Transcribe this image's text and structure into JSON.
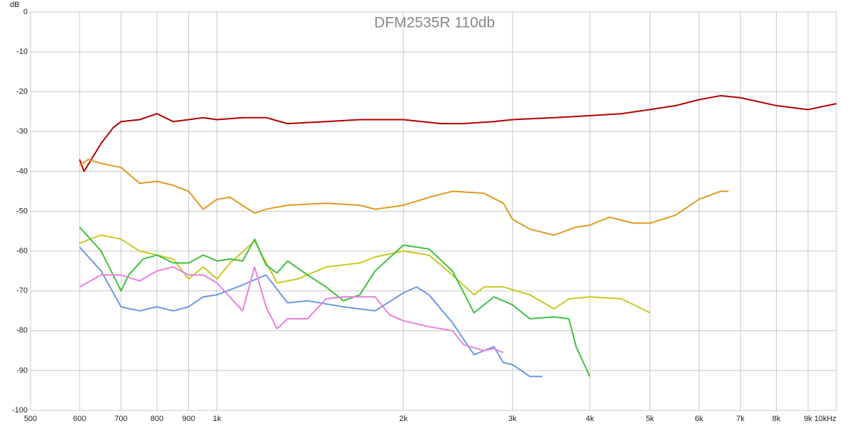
{
  "chart_data": {
    "type": "line",
    "title": "DFM2535R 110db",
    "y_label": "dB",
    "xscale": "log",
    "grid": true,
    "xlim": [
      500,
      10000
    ],
    "ylim": [
      -100,
      0
    ],
    "xticks": [
      500,
      600,
      700,
      800,
      900,
      {
        "value": 1000,
        "label": "1k"
      },
      {
        "value": 2000,
        "label": "2k"
      },
      {
        "value": 3000,
        "label": "3k"
      },
      {
        "value": 4000,
        "label": "4k"
      },
      {
        "value": 5000,
        "label": "5k"
      },
      {
        "value": 6000,
        "label": "6k"
      },
      {
        "value": 7000,
        "label": "7k"
      },
      {
        "value": 8000,
        "label": "8k"
      },
      {
        "value": 9000,
        "label": "9k"
      },
      {
        "value": 10000,
        "label": "10kHz"
      }
    ],
    "yticks": [
      0,
      -10,
      -20,
      -30,
      -40,
      -50,
      -60,
      -70,
      -80,
      -90,
      -100
    ],
    "series": [
      {
        "color": "#b00000",
        "x": [
          600,
          610,
          650,
          680,
          700,
          750,
          800,
          850,
          900,
          950,
          1000,
          1100,
          1200,
          1300,
          1500,
          1700,
          2000,
          2300,
          2500,
          2800,
          3000,
          3500,
          4000,
          4500,
          5000,
          5500,
          6000,
          6500,
          7000,
          8000,
          9000,
          10000
        ],
        "values": [
          -37,
          -40,
          -33,
          -29,
          -27.5,
          -27,
          -25.5,
          -27.5,
          -27,
          -26.5,
          -27,
          -26.5,
          -26.5,
          -28,
          -27.5,
          -27,
          -27,
          -28,
          -28,
          -27.5,
          -27,
          -26.5,
          -26,
          -25.5,
          -24.5,
          -23.5,
          -22,
          -21,
          -21.5,
          -23.5,
          -24.5,
          -23
        ]
      },
      {
        "color": "#e09a20",
        "x": [
          600,
          620,
          650,
          700,
          750,
          800,
          850,
          900,
          950,
          1000,
          1050,
          1150,
          1200,
          1300,
          1500,
          1700,
          1800,
          2000,
          2200,
          2400,
          2700,
          2900,
          3000,
          3200,
          3500,
          3800,
          4000,
          4300,
          4700,
          5000,
          5500,
          6000,
          6500,
          6700
        ],
        "values": [
          -38.5,
          -37,
          -38,
          -39,
          -43,
          -42.5,
          -43.5,
          -45,
          -49.5,
          -47,
          -46.5,
          -50.5,
          -49.5,
          -48.5,
          -48,
          -48.5,
          -49.5,
          -48.5,
          -46.5,
          -45,
          -45.5,
          -48,
          -52,
          -54.5,
          -56,
          -54,
          -53.5,
          -51.5,
          -53,
          -53,
          -51,
          -47,
          -45,
          -45
        ]
      },
      {
        "color": "#c8c820",
        "x": [
          600,
          650,
          700,
          750,
          800,
          850,
          900,
          950,
          1000,
          1050,
          1150,
          1250,
          1350,
          1500,
          1700,
          1800,
          2000,
          2200,
          2400,
          2600,
          2700,
          2900,
          3200,
          3500,
          3700,
          4000,
          4500,
          5000
        ],
        "values": [
          -58,
          -56,
          -57,
          -60,
          -61,
          -62,
          -67,
          -64,
          -67,
          -63,
          -57.5,
          -68,
          -67,
          -64,
          -63,
          -61.5,
          -60,
          -61,
          -66,
          -71,
          -69,
          -69,
          -71,
          -74.5,
          -72,
          -71.5,
          -72,
          -75.5
        ]
      },
      {
        "color": "#40c040",
        "x": [
          600,
          650,
          700,
          720,
          760,
          800,
          850,
          900,
          950,
          1000,
          1050,
          1100,
          1150,
          1200,
          1250,
          1300,
          1400,
          1500,
          1600,
          1700,
          1800,
          2000,
          2200,
          2400,
          2600,
          2800,
          3000,
          3200,
          3500,
          3700,
          3800,
          4000
        ],
        "values": [
          -54,
          -60,
          -70,
          -66,
          -62,
          -61,
          -63,
          -63,
          -61,
          -62.5,
          -62,
          -62.5,
          -57,
          -63.5,
          -65.5,
          -62.5,
          -66,
          -69,
          -72.5,
          -71,
          -65,
          -58.5,
          -59.5,
          -65,
          -75.5,
          -71.5,
          -73.5,
          -77,
          -76.5,
          -77,
          -84,
          -91.5
        ]
      },
      {
        "color": "#6a9ae0",
        "x": [
          600,
          650,
          700,
          750,
          800,
          850,
          900,
          950,
          1000,
          1100,
          1200,
          1300,
          1400,
          1600,
          1800,
          2000,
          2100,
          2200,
          2400,
          2600,
          2700,
          2800,
          2900,
          3000,
          3200,
          3350
        ],
        "values": [
          -59,
          -65,
          -74,
          -75,
          -74,
          -75,
          -74,
          -71.5,
          -71,
          -68.5,
          -66,
          -73,
          -72.5,
          -74,
          -75,
          -70.5,
          -69,
          -71,
          -78,
          -86,
          -85,
          -84,
          -88,
          -88.5,
          -91.5,
          -91.5
        ]
      },
      {
        "color": "#e880e0",
        "x": [
          600,
          650,
          700,
          750,
          800,
          850,
          900,
          950,
          1000,
          1100,
          1150,
          1200,
          1250,
          1300,
          1400,
          1500,
          1600,
          1700,
          1800,
          1900,
          2000,
          2200,
          2400,
          2500,
          2700,
          2800,
          2900
        ],
        "values": [
          -69,
          -66,
          -66,
          -67.5,
          -65,
          -64,
          -66,
          -66,
          -68,
          -75,
          -64,
          -74,
          -79.5,
          -77,
          -77,
          -72,
          -71.5,
          -71.5,
          -71.5,
          -76,
          -77.5,
          -79,
          -80,
          -83.5,
          -85,
          -84.5,
          -85.5
        ]
      }
    ]
  }
}
